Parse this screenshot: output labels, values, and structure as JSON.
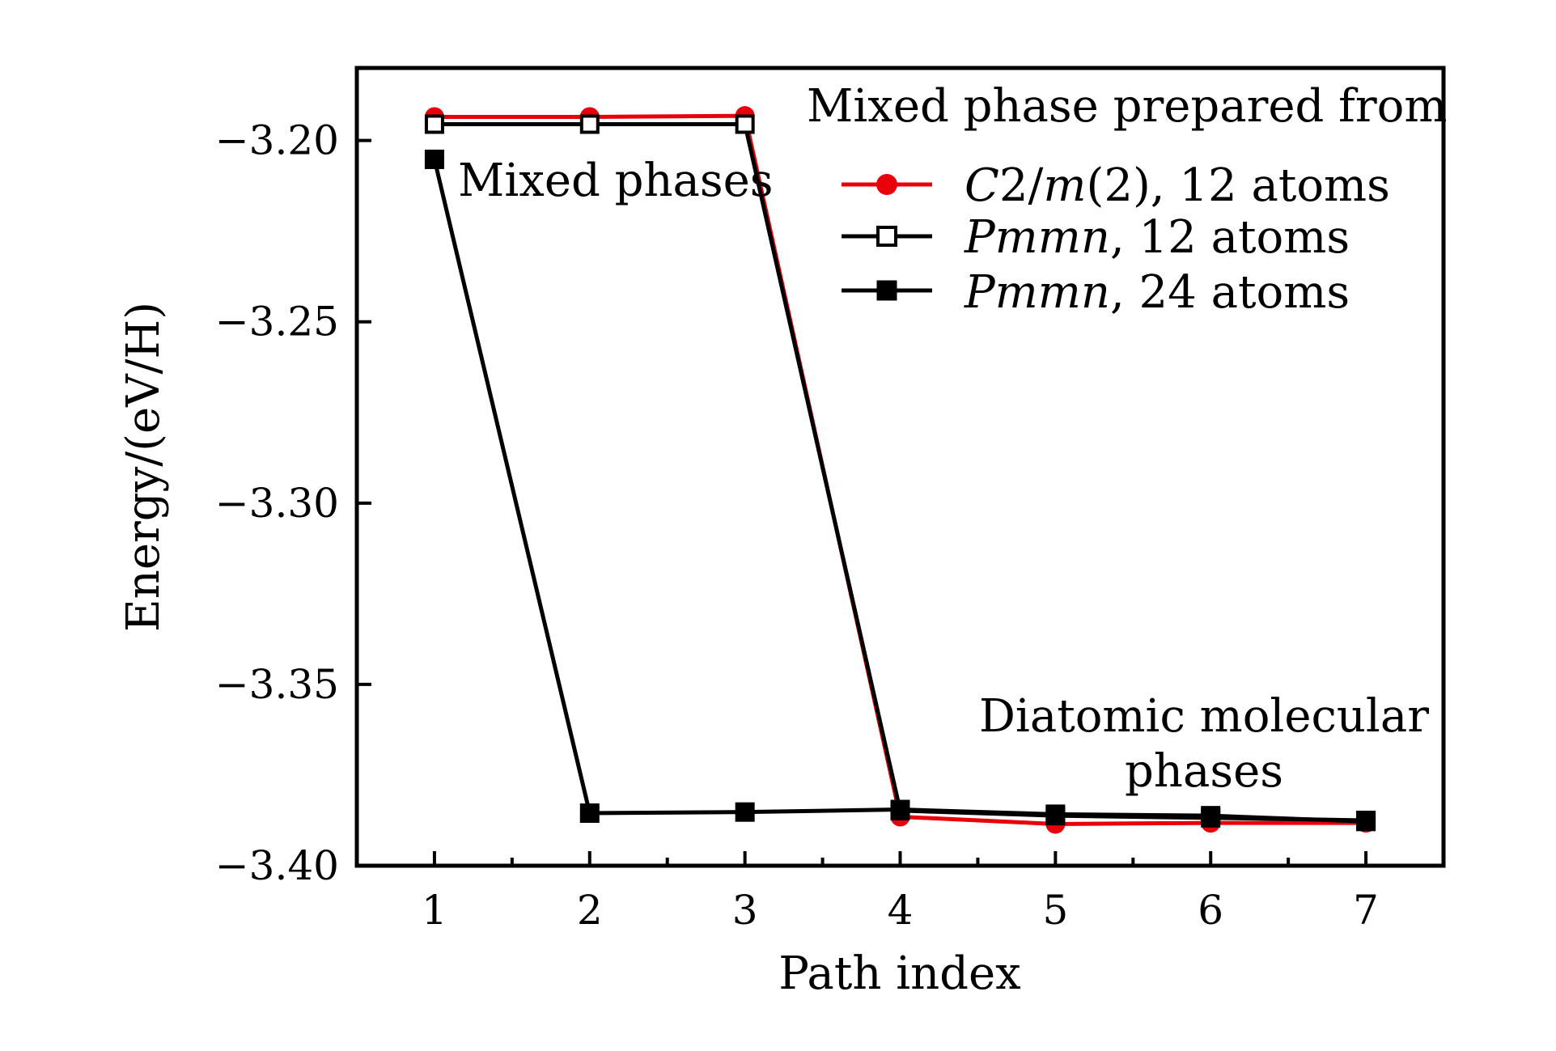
{
  "chart_data": {
    "type": "line",
    "xlabel": "Path index",
    "ylabel": "Energy/(eV/H)",
    "x": [
      1,
      2,
      3,
      4,
      5,
      6,
      7
    ],
    "xlim": [
      0.5,
      7.5
    ],
    "ylim": [
      -3.4,
      -3.18
    ],
    "x_ticks": [
      "1",
      "2",
      "3",
      "4",
      "5",
      "6",
      "7"
    ],
    "y_ticks": [
      {
        "value": -3.2,
        "label": "−3.20"
      },
      {
        "value": -3.25,
        "label": "−3.25"
      },
      {
        "value": -3.3,
        "label": "−3.30"
      },
      {
        "value": -3.35,
        "label": "−3.35"
      },
      {
        "value": -3.4,
        "label": "−3.40"
      }
    ],
    "legend_title": "Mixed phase prepared from",
    "legend_position": "top-right",
    "series": [
      {
        "name_italic": "C",
        "name_rest1": "2/",
        "name_italic2": "m",
        "name_rest2": "(2), 12 atoms",
        "color": "#e8000b",
        "marker": "circle-filled",
        "values": [
          -3.1935,
          -3.1935,
          -3.1932,
          -3.3865,
          -3.3885,
          -3.3882,
          -3.3882
        ]
      },
      {
        "name_italic": "Pmmn",
        "name_rest1": ", 12 atoms",
        "name_italic2": "",
        "name_rest2": "",
        "color": "#000000",
        "marker": "square-open",
        "values": [
          -3.1955,
          -3.1955,
          -3.1955,
          -3.3848,
          -3.3862,
          -3.3868,
          -3.3875
        ]
      },
      {
        "name_italic": "Pmmn",
        "name_rest1": ", 24 atoms",
        "name_italic2": "",
        "name_rest2": "",
        "color": "#000000",
        "marker": "square-filled",
        "values": [
          -3.2052,
          -3.3855,
          -3.3852,
          -3.3845,
          -3.3858,
          -3.3862,
          -3.3878
        ]
      }
    ],
    "annotations": [
      {
        "text": "Mixed phases"
      },
      {
        "text": "Diatomic molecular"
      },
      {
        "text": "phases"
      }
    ]
  }
}
